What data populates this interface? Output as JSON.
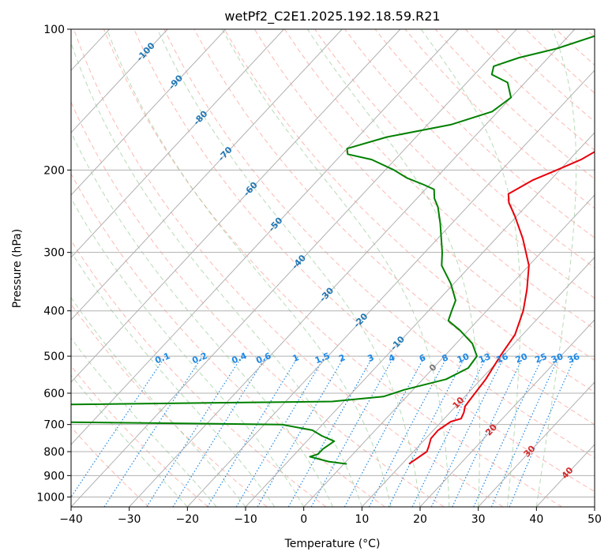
{
  "chart_data": {
    "type": "line",
    "diagram": "skew-T log-P",
    "title": "wetPf2_C2E1.2025.192.18.59.R21",
    "xlabel": "Temperature (°C)",
    "ylabel": "Pressure (hPa)",
    "xlim": [
      -40,
      50
    ],
    "ylim_hpa": [
      1050,
      100
    ],
    "y_scale": "log",
    "skew_deg_per_decade": 75,
    "grid": true,
    "x_ticks": [
      -40,
      -30,
      -20,
      -10,
      0,
      10,
      20,
      30,
      40,
      50
    ],
    "x_tick_labels": [
      "−40",
      "−30",
      "−20",
      "−10",
      "0",
      "10",
      "20",
      "30",
      "40",
      "50"
    ],
    "y_ticks": [
      100,
      200,
      300,
      400,
      500,
      600,
      700,
      800,
      900,
      1000
    ],
    "y_tick_labels": [
      "100",
      "200",
      "300",
      "400",
      "500",
      "600",
      "700",
      "800",
      "900",
      "1000"
    ],
    "colors": {
      "temperature": "#e8000b",
      "dewpoint": "#008000",
      "isotherm_label": "#1f77b4",
      "mixing_ratio": "#1e88e5",
      "dry_adiabat": "#fa8072",
      "moist_adiabat": "#90c890",
      "wetbulb_label": "#d62728",
      "grid": "#b0b0b0"
    },
    "series": [
      {
        "role": "temperature",
        "points": [
          [
            850,
            11.2
          ],
          [
            800,
            12.3
          ],
          [
            780,
            11.8
          ],
          [
            750,
            10.9
          ],
          [
            720,
            10.8
          ],
          [
            690,
            11.6
          ],
          [
            680,
            12.9
          ],
          [
            660,
            12.4
          ],
          [
            640,
            11.6
          ],
          [
            620,
            11.4
          ],
          [
            560,
            10.8
          ],
          [
            500,
            9.6
          ],
          [
            450,
            8.7
          ],
          [
            400,
            6.3
          ],
          [
            360,
            3.5
          ],
          [
            320,
            0.0
          ],
          [
            280,
            -5.4
          ],
          [
            250,
            -10.5
          ],
          [
            235,
            -13.5
          ],
          [
            225,
            -15.0
          ],
          [
            210,
            -13.0
          ],
          [
            200,
            -10.5
          ],
          [
            190,
            -8.0
          ],
          [
            180,
            -6.5
          ],
          [
            170,
            -6.6
          ],
          [
            160,
            -6.9
          ],
          [
            150,
            -7.0
          ],
          [
            140,
            -5.0
          ],
          [
            130,
            -2.5
          ],
          [
            120,
            -1.5
          ],
          [
            110,
            -1.5
          ],
          [
            100,
            -1.7
          ]
        ]
      },
      {
        "role": "dewpoint",
        "points": [
          [
            850,
            0.5
          ],
          [
            840,
            -3.0
          ],
          [
            820,
            -7.0
          ],
          [
            810,
            -6.0
          ],
          [
            790,
            -6.0
          ],
          [
            760,
            -5.3
          ],
          [
            740,
            -8.3
          ],
          [
            720,
            -10.8
          ],
          [
            700,
            -17.0
          ],
          [
            690,
            -62.0
          ],
          [
            680,
            -95.0
          ],
          [
            640,
            -110.0
          ],
          [
            635,
            -60.0
          ],
          [
            625,
            -12.0
          ],
          [
            610,
            -4.0
          ],
          [
            590,
            -1.5
          ],
          [
            560,
            4.0
          ],
          [
            530,
            6.0
          ],
          [
            500,
            5.6
          ],
          [
            470,
            2.8
          ],
          [
            440,
            -1.5
          ],
          [
            420,
            -5.0
          ],
          [
            400,
            -6.0
          ],
          [
            380,
            -7.0
          ],
          [
            350,
            -10.5
          ],
          [
            320,
            -15.0
          ],
          [
            300,
            -17.0
          ],
          [
            260,
            -22.0
          ],
          [
            240,
            -25.0
          ],
          [
            230,
            -27.0
          ],
          [
            220,
            -28.5
          ],
          [
            215,
            -31.0
          ],
          [
            208,
            -35.0
          ],
          [
            200,
            -38.5
          ],
          [
            190,
            -44.0
          ],
          [
            185,
            -49.0
          ],
          [
            180,
            -50.0
          ],
          [
            170,
            -45.0
          ],
          [
            160,
            -36.0
          ],
          [
            150,
            -31.0
          ],
          [
            140,
            -30.0
          ],
          [
            130,
            -33.0
          ],
          [
            125,
            -37.0
          ],
          [
            120,
            -38.0
          ],
          [
            115,
            -35.0
          ],
          [
            110,
            -30.0
          ],
          [
            100,
            -23.0
          ]
        ]
      }
    ],
    "isotherm_labels": [
      {
        "text": "-100",
        "t": -100,
        "p": 112
      },
      {
        "text": "-90",
        "t": -90,
        "p": 130
      },
      {
        "text": "-80",
        "t": -80,
        "p": 155
      },
      {
        "text": "-70",
        "t": -70,
        "p": 185
      },
      {
        "text": "-60",
        "t": -60,
        "p": 220
      },
      {
        "text": "-50",
        "t": -50,
        "p": 262
      },
      {
        "text": "-40",
        "t": -40,
        "p": 315
      },
      {
        "text": "-30",
        "t": -30,
        "p": 370
      },
      {
        "text": "-20",
        "t": -20,
        "p": 420
      },
      {
        "text": "-10",
        "t": -10,
        "p": 470
      },
      {
        "text": "0",
        "t": 0,
        "p": 530
      },
      {
        "text": "10",
        "t": 10,
        "p": 630
      },
      {
        "text": "20",
        "t": 20,
        "p": 720
      },
      {
        "text": "30",
        "t": 30,
        "p": 800
      },
      {
        "text": "40",
        "t": 40,
        "p": 890
      }
    ],
    "mixing_ratio_labels": [
      "0.1",
      "0.2",
      "0.4",
      "0.6",
      "1",
      "1.5",
      "2",
      "3",
      "4",
      "6",
      "8",
      "10",
      "13",
      "16",
      "20",
      "25",
      "30",
      "36"
    ]
  }
}
